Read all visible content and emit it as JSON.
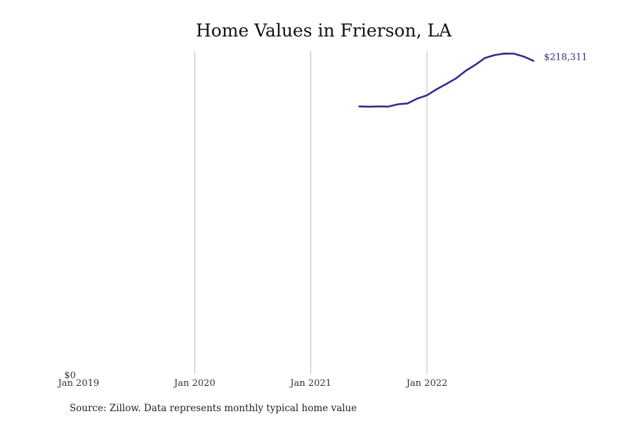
{
  "chart_data": {
    "type": "line",
    "title": "Home Values in Frierson, LA",
    "xlabel": "",
    "ylabel": "",
    "x_ticks": [
      "Jan 2019",
      "Jan 2020",
      "Jan 2021",
      "Jan 2022"
    ],
    "y_ticks": [
      "$0"
    ],
    "grid": "vertical",
    "legend": "none",
    "series": [
      {
        "color": "#2e2e8c",
        "end_label": "$218,311",
        "x": [
          "2021-06",
          "2021-07",
          "2021-08",
          "2021-09",
          "2021-10",
          "2021-11",
          "2021-12",
          "2022-01",
          "2022-02",
          "2022-03",
          "2022-04",
          "2022-05",
          "2022-06",
          "2022-07",
          "2022-08",
          "2022-09",
          "2022-10",
          "2022-11",
          "2022-12"
        ],
        "values": [
          186500,
          186300,
          186500,
          186400,
          188000,
          188600,
          192000,
          194300,
          198500,
          202200,
          206000,
          211300,
          215500,
          220300,
          222300,
          223400,
          223300,
          221300,
          218311
        ]
      }
    ],
    "xlim": [
      "2019-01",
      "2023-07"
    ],
    "ylim": [
      0,
      225000
    ]
  },
  "footer": {
    "source": "Source: Zillow. Data represents monthly typical home value"
  }
}
